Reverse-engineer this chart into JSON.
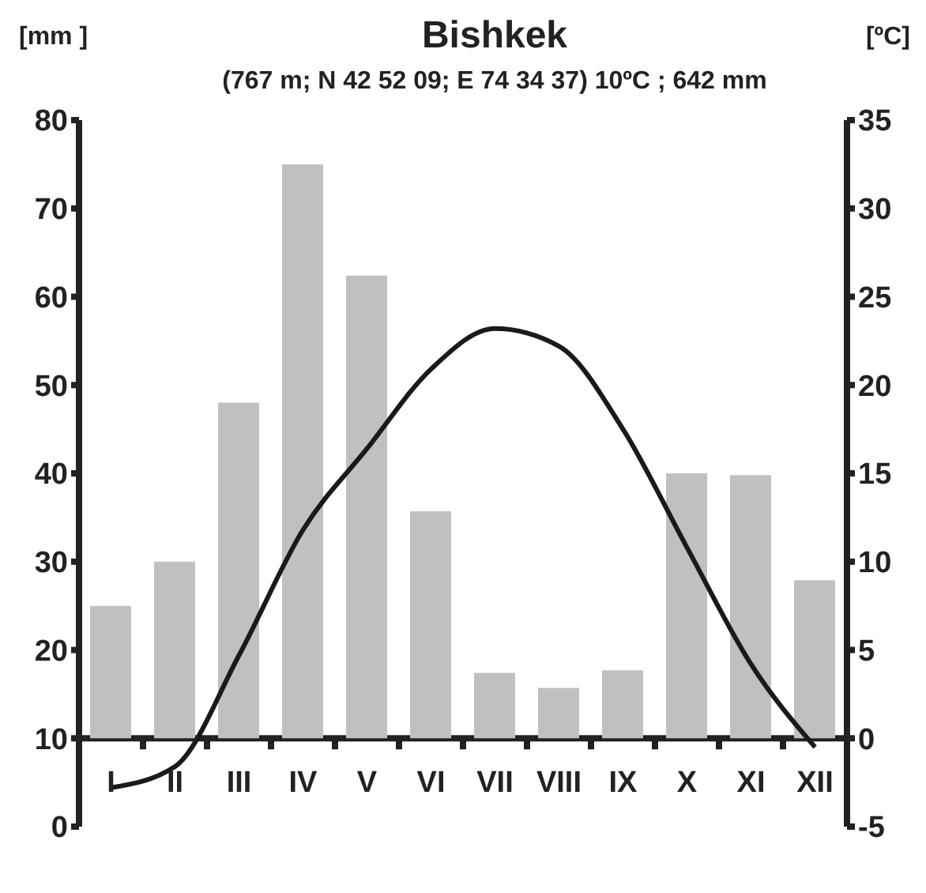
{
  "chart_data": {
    "type": "bar",
    "title": "Bishkek",
    "subtitle": "(767 m; N 42 52 09; E 74 34 37) 10ºC ; 642 mm",
    "ylabel": "[mm ]",
    "y2label": "[ºC]",
    "categories": [
      "I",
      "II",
      "III",
      "IV",
      "V",
      "VI",
      "VII",
      "VIII",
      "IX",
      "X",
      "XI",
      "XII"
    ],
    "series": [
      {
        "color": "#c0c0c0",
        "base": [
          10,
          10,
          10,
          10,
          10,
          10,
          10,
          10,
          10,
          10,
          10,
          10
        ],
        "values": [
          15,
          20,
          38,
          65,
          52.4,
          25.7,
          7.4,
          5.7,
          7.7,
          30,
          29.8,
          17.9
        ]
      },
      {
        "type": "line",
        "axis": "y2",
        "color": "#1a1a1a",
        "values": [
          -2.8,
          -1.6,
          4.7,
          11.8,
          16.4,
          20.9,
          23.2,
          22.2,
          17.5,
          10.8,
          4.2,
          -0.5
        ]
      }
    ],
    "ylim": [
      0,
      80
    ],
    "yticks": [
      0,
      10,
      20,
      30,
      40,
      50,
      60,
      70,
      80
    ],
    "y2lim": [
      -5,
      35
    ],
    "y2ticks": [
      -5,
      0,
      5,
      10,
      15,
      20,
      25,
      30,
      35
    ],
    "grid": false,
    "legend": false,
    "marker": "none",
    "line_style": "solid"
  }
}
